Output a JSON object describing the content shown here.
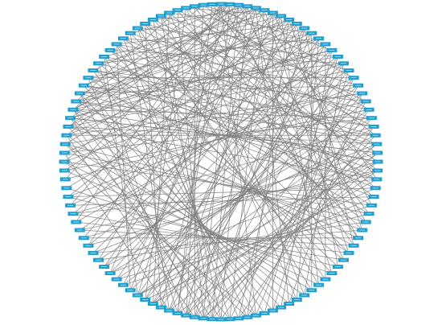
{
  "diagram": {
    "type": "circular-network",
    "node_count": 112,
    "node_labels_legible": false,
    "colors": {
      "node_fill": "#1f9fd0",
      "edge_stroke": "#7f7f7f",
      "background": "#ffffff"
    },
    "edges": [
      [
        0,
        37
      ],
      [
        0,
        52
      ],
      [
        0,
        61
      ],
      [
        0,
        70
      ],
      [
        0,
        77
      ],
      [
        1,
        40
      ],
      [
        1,
        58
      ],
      [
        1,
        66
      ],
      [
        1,
        82
      ],
      [
        1,
        95
      ],
      [
        2,
        35
      ],
      [
        2,
        57
      ],
      [
        2,
        63
      ],
      [
        2,
        74
      ],
      [
        2,
        88
      ],
      [
        3,
        42
      ],
      [
        3,
        56
      ],
      [
        3,
        67
      ],
      [
        3,
        79
      ],
      [
        3,
        101
      ],
      [
        4,
        30
      ],
      [
        4,
        48
      ],
      [
        4,
        60
      ],
      [
        4,
        72
      ],
      [
        4,
        84
      ],
      [
        5,
        39
      ],
      [
        5,
        55
      ],
      [
        5,
        68
      ],
      [
        5,
        90
      ],
      [
        5,
        104
      ],
      [
        6,
        33
      ],
      [
        6,
        50
      ],
      [
        6,
        62
      ],
      [
        6,
        75
      ],
      [
        6,
        97
      ],
      [
        7,
        44
      ],
      [
        7,
        59
      ],
      [
        7,
        71
      ],
      [
        7,
        86
      ],
      [
        7,
        108
      ],
      [
        8,
        36
      ],
      [
        8,
        53
      ],
      [
        8,
        64
      ],
      [
        8,
        80
      ],
      [
        8,
        93
      ],
      [
        9,
        41
      ],
      [
        9,
        57
      ],
      [
        9,
        69
      ],
      [
        9,
        83
      ],
      [
        9,
        99
      ],
      [
        10,
        38
      ],
      [
        10,
        54
      ],
      [
        10,
        65
      ],
      [
        10,
        78
      ],
      [
        10,
        92
      ],
      [
        11,
        45
      ],
      [
        11,
        60
      ],
      [
        11,
        73
      ],
      [
        11,
        87
      ],
      [
        11,
        106
      ],
      [
        12,
        47
      ],
      [
        12,
        58
      ],
      [
        12,
        66
      ],
      [
        12,
        81
      ],
      [
        12,
        96
      ],
      [
        13,
        43
      ],
      [
        13,
        61
      ],
      [
        13,
        70
      ],
      [
        13,
        85
      ],
      [
        13,
        102
      ],
      [
        14,
        49
      ],
      [
        14,
        62
      ],
      [
        14,
        74
      ],
      [
        14,
        89
      ],
      [
        14,
        110
      ],
      [
        15,
        51
      ],
      [
        15,
        63
      ],
      [
        15,
        76
      ],
      [
        15,
        91
      ],
      [
        15,
        100
      ],
      [
        16,
        46
      ],
      [
        16,
        59
      ],
      [
        16,
        71
      ],
      [
        16,
        84
      ],
      [
        16,
        98
      ],
      [
        17,
        50
      ],
      [
        17,
        64
      ],
      [
        17,
        77
      ],
      [
        17,
        88
      ],
      [
        17,
        105
      ],
      [
        18,
        52
      ],
      [
        18,
        65
      ],
      [
        18,
        79
      ],
      [
        18,
        94
      ],
      [
        18,
        111
      ],
      [
        19,
        55
      ],
      [
        19,
        67
      ],
      [
        19,
        80
      ],
      [
        19,
        92
      ],
      [
        19,
        103
      ],
      [
        20,
        48
      ],
      [
        20,
        60
      ],
      [
        20,
        72
      ],
      [
        20,
        86
      ],
      [
        20,
        99
      ],
      [
        21,
        53
      ],
      [
        21,
        68
      ],
      [
        21,
        82
      ],
      [
        21,
        95
      ],
      [
        21,
        107
      ],
      [
        22,
        56
      ],
      [
        22,
        69
      ],
      [
        22,
        83
      ],
      [
        22,
        97
      ],
      [
        22,
        109
      ],
      [
        23,
        57
      ],
      [
        23,
        70
      ],
      [
        23,
        85
      ],
      [
        23,
        90
      ],
      [
        23,
        101
      ],
      [
        24,
        54
      ],
      [
        24,
        66
      ],
      [
        24,
        78
      ],
      [
        24,
        93
      ],
      [
        24,
        104
      ],
      [
        25,
        58
      ],
      [
        25,
        71
      ],
      [
        25,
        87
      ],
      [
        25,
        96
      ],
      [
        25,
        110
      ],
      [
        26,
        60
      ],
      [
        26,
        73
      ],
      [
        26,
        88
      ],
      [
        26,
        100
      ],
      [
        26,
        64
      ],
      [
        27,
        62
      ],
      [
        27,
        75
      ],
      [
        27,
        89
      ],
      [
        27,
        102
      ],
      [
        27,
        58
      ],
      [
        28,
        59
      ],
      [
        28,
        74
      ],
      [
        28,
        91
      ],
      [
        28,
        105
      ],
      [
        28,
        66
      ],
      [
        29,
        61
      ],
      [
        29,
        76
      ],
      [
        29,
        94
      ],
      [
        29,
        108
      ],
      [
        29,
        70
      ],
      [
        30,
        64
      ],
      [
        30,
        78
      ],
      [
        30,
        92
      ],
      [
        30,
        99
      ],
      [
        31,
        66
      ],
      [
        31,
        80
      ],
      [
        31,
        95
      ],
      [
        31,
        106
      ],
      [
        32,
        65
      ],
      [
        32,
        79
      ],
      [
        32,
        93
      ],
      [
        32,
        103
      ],
      [
        33,
        68
      ],
      [
        33,
        84
      ],
      [
        33,
        98
      ],
      [
        34,
        69
      ],
      [
        34,
        85
      ],
      [
        34,
        97
      ],
      [
        34,
        111
      ],
      [
        35,
        72
      ],
      [
        35,
        86
      ],
      [
        35,
        100
      ],
      [
        36,
        73
      ],
      [
        36,
        88
      ],
      [
        36,
        104
      ],
      [
        37,
        75
      ],
      [
        37,
        90
      ],
      [
        37,
        107
      ],
      [
        38,
        76
      ],
      [
        38,
        91
      ],
      [
        38,
        109
      ],
      [
        39,
        77
      ],
      [
        39,
        94
      ],
      [
        39,
        101
      ],
      [
        40,
        78
      ],
      [
        40,
        96
      ],
      [
        41,
        80
      ],
      [
        41,
        98
      ],
      [
        42,
        81
      ],
      [
        42,
        99
      ],
      [
        43,
        83
      ],
      [
        43,
        102
      ],
      [
        44,
        84
      ],
      [
        44,
        105
      ],
      [
        45,
        86
      ],
      [
        45,
        103
      ],
      [
        46,
        87
      ],
      [
        46,
        108
      ],
      [
        47,
        89
      ],
      [
        47,
        106
      ],
      [
        48,
        90
      ],
      [
        49,
        92
      ],
      [
        50,
        93
      ],
      [
        51,
        95
      ],
      [
        52,
        97
      ],
      [
        53,
        99
      ],
      [
        54,
        100
      ],
      [
        55,
        102
      ],
      [
        56,
        104
      ],
      [
        57,
        105
      ],
      [
        58,
        107
      ],
      [
        59,
        109
      ],
      [
        60,
        110
      ],
      [
        61,
        111
      ],
      [
        62,
        101
      ],
      [
        63,
        103
      ],
      [
        64,
        106
      ],
      [
        65,
        108
      ],
      [
        66,
        97
      ],
      [
        67,
        99
      ],
      [
        90,
        56
      ],
      [
        90,
        28
      ],
      [
        90,
        14
      ],
      [
        90,
        3
      ],
      [
        90,
        110
      ],
      [
        89,
        57
      ],
      [
        89,
        27
      ],
      [
        89,
        12
      ],
      [
        89,
        1
      ],
      [
        88,
        55
      ],
      [
        88,
        30
      ],
      [
        88,
        8
      ],
      [
        87,
        59
      ],
      [
        87,
        20
      ],
      [
        87,
        2
      ],
      [
        91,
        25
      ],
      [
        91,
        9
      ],
      [
        91,
        107
      ],
      [
        92,
        58
      ],
      [
        92,
        16
      ],
      [
        93,
        26
      ],
      [
        93,
        4
      ],
      [
        94,
        60
      ],
      [
        94,
        11
      ],
      [
        95,
        24
      ],
      [
        96,
        61
      ],
      [
        96,
        7
      ],
      [
        86,
        53
      ],
      [
        85,
        62
      ],
      [
        84,
        52
      ]
    ]
  }
}
